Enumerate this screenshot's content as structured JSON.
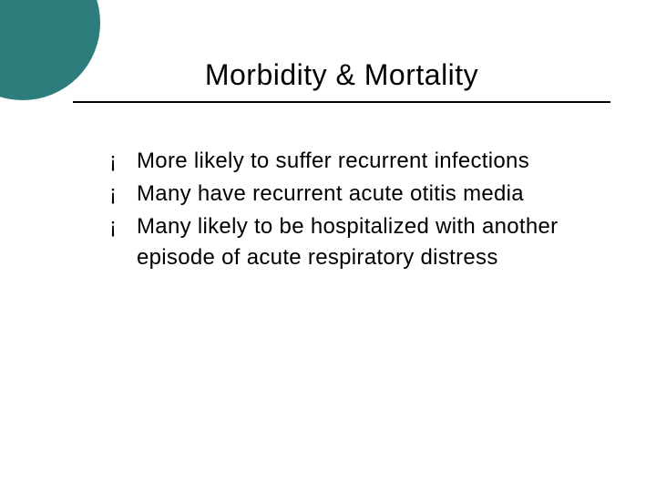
{
  "slide": {
    "title": "Morbidity & Mortality",
    "accent_color": "#2d7d7d",
    "title_fontsize": 32,
    "title_color": "#000000",
    "underline_color": "#000000",
    "background_color": "#ffffff",
    "bullet_glyph": "¡",
    "bullet_fontsize": 24,
    "body_fontsize": 24,
    "body_color": "#000000",
    "bullets": [
      {
        "text": "More likely to suffer recurrent infections"
      },
      {
        "text": "Many have recurrent acute otitis media"
      },
      {
        "text": "Many likely to be hospitalized with another episode of acute respiratory distress"
      }
    ]
  }
}
